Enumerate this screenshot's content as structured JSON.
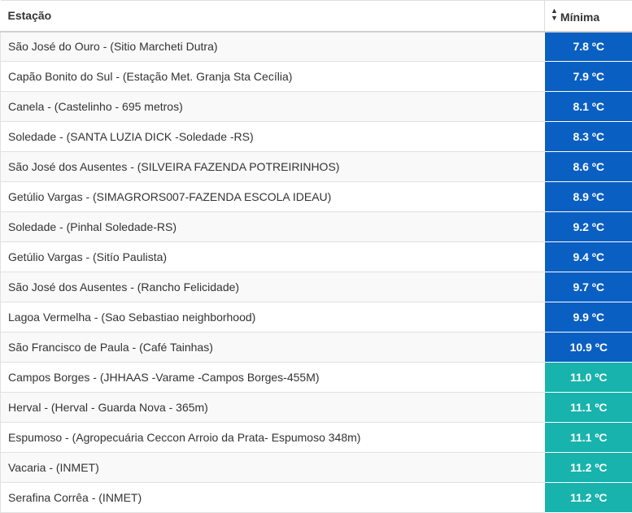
{
  "table": {
    "headers": {
      "station": "Estação",
      "minimum": "Mínima",
      "sort_icon": "sort-icon"
    },
    "colors": {
      "cold": "#0a5fc2",
      "mild": "#17b3ac"
    },
    "rows": [
      {
        "station": "São José do Ouro - (Sitio Marcheti Dutra)",
        "min": "7.8 ºC",
        "band": "cold"
      },
      {
        "station": "Capão Bonito do Sul - (Estação Met. Granja Sta Cecília)",
        "min": "7.9 ºC",
        "band": "cold"
      },
      {
        "station": "Canela - (Castelinho - 695 metros)",
        "min": "8.1 ºC",
        "band": "cold"
      },
      {
        "station": "Soledade - (SANTA LUZIA DICK -Soledade -RS)",
        "min": "8.3 ºC",
        "band": "cold"
      },
      {
        "station": "São José dos Ausentes - (SILVEIRA FAZENDA POTREIRINHOS)",
        "min": "8.6 ºC",
        "band": "cold"
      },
      {
        "station": "Getúlio Vargas - (SIMAGRORS007-FAZENDA ESCOLA IDEAU)",
        "min": "8.9 ºC",
        "band": "cold"
      },
      {
        "station": "Soledade - (Pinhal Soledade-RS)",
        "min": "9.2 ºC",
        "band": "cold"
      },
      {
        "station": "Getúlio Vargas - (Sitío Paulista)",
        "min": "9.4 ºC",
        "band": "cold"
      },
      {
        "station": "São José dos Ausentes - (Rancho Felicidade)",
        "min": "9.7 ºC",
        "band": "cold"
      },
      {
        "station": "Lagoa Vermelha - (Sao Sebastiao neighborhood)",
        "min": "9.9 ºC",
        "band": "cold"
      },
      {
        "station": "São Francisco de Paula - (Café Tainhas)",
        "min": "10.9 ºC",
        "band": "cold"
      },
      {
        "station": "Campos Borges - (JHHAAS -Varame -Campos Borges-455M)",
        "min": "11.0 ºC",
        "band": "mild"
      },
      {
        "station": "Herval - (Herval - Guarda Nova - 365m)",
        "min": "11.1 ºC",
        "band": "mild"
      },
      {
        "station": "Espumoso - (Agropecuária Ceccon Arroio da Prata- Espumoso 348m)",
        "min": "11.1 ºC",
        "band": "mild"
      },
      {
        "station": "Vacaria - (INMET)",
        "min": "11.2 ºC",
        "band": "mild"
      },
      {
        "station": "Serafina Corrêa - (INMET)",
        "min": "11.2 ºC",
        "band": "mild"
      }
    ]
  }
}
